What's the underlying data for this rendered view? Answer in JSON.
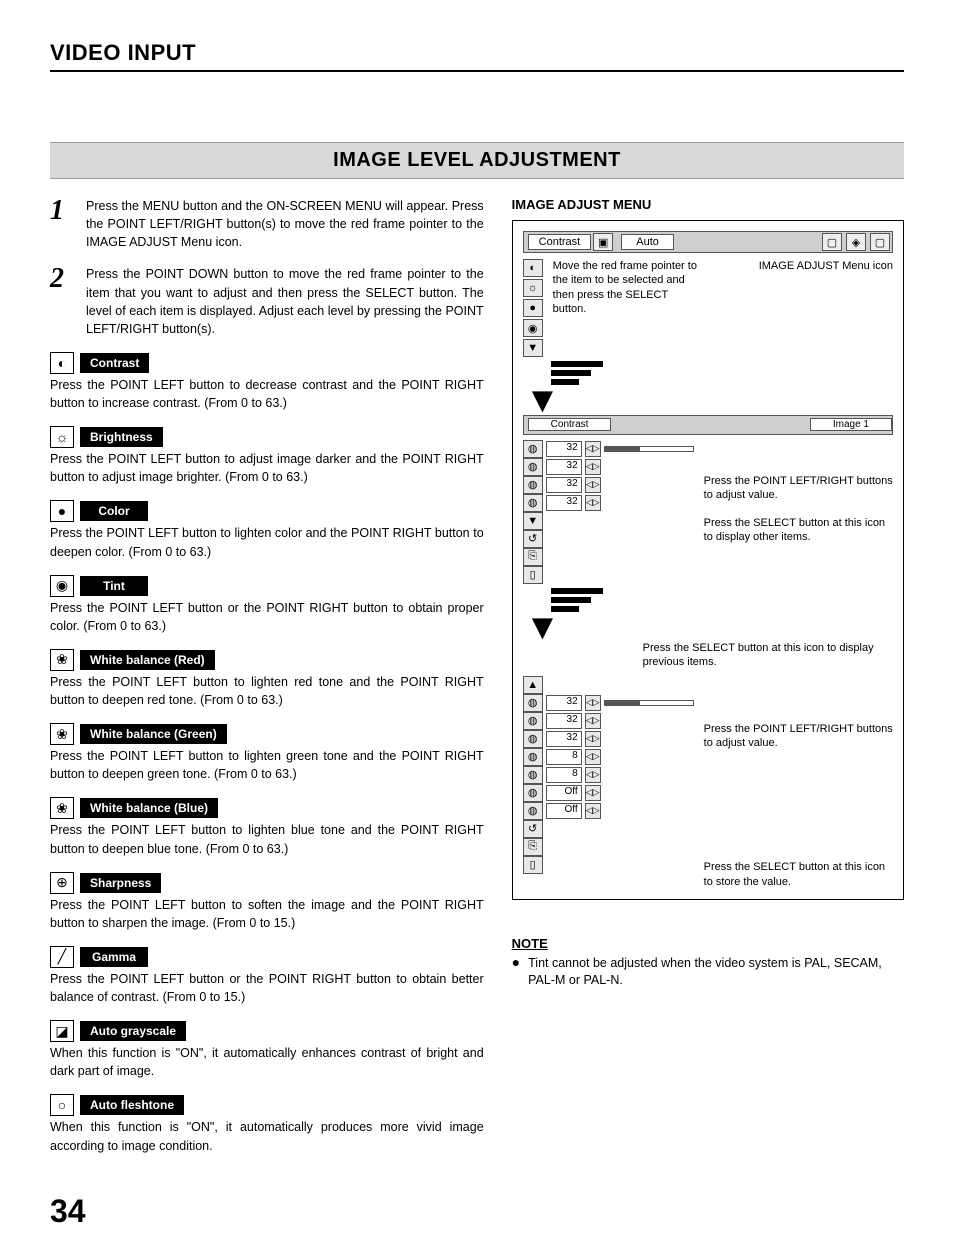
{
  "page_title": "VIDEO INPUT",
  "section_title": "IMAGE LEVEL ADJUSTMENT",
  "page_number": "34",
  "steps": [
    {
      "num": "1",
      "text": "Press the MENU button and the ON-SCREEN MENU will appear.  Press the POINT LEFT/RIGHT button(s) to move the red frame pointer to the IMAGE ADJUST Menu icon."
    },
    {
      "num": "2",
      "text": "Press the POINT DOWN button to move the red frame pointer to the item that you want to adjust and then press the SELECT button.  The level of each item is displayed.  Adjust each level by pressing the POINT LEFT/RIGHT button(s)."
    }
  ],
  "params": [
    {
      "icon": "◐",
      "label": "Contrast",
      "desc": "Press the POINT LEFT button to decrease contrast and the POINT RIGHT button to increase contrast.  (From 0 to 63.)"
    },
    {
      "icon": "☼",
      "label": "Brightness",
      "desc": "Press the POINT LEFT button to adjust image darker and the POINT RIGHT button to adjust image brighter.  (From 0 to 63.)"
    },
    {
      "icon": "●",
      "label": "Color",
      "desc": "Press the POINT LEFT button to lighten color and the POINT RIGHT button to deepen color.  (From 0 to 63.)"
    },
    {
      "icon": "◉",
      "label": "Tint",
      "desc": "Press the POINT LEFT button or the POINT RIGHT button to obtain proper color.  (From 0 to 63.)"
    },
    {
      "icon": "❀",
      "label": "White balance (Red)",
      "desc": "Press the POINT LEFT button to lighten red tone and the POINT RIGHT button to deepen red tone.  (From 0 to 63.)"
    },
    {
      "icon": "❀",
      "label": "White balance (Green)",
      "desc": "Press the POINT LEFT button to lighten green tone and the POINT RIGHT button to deepen green tone.  (From 0 to 63.)"
    },
    {
      "icon": "❀",
      "label": "White balance (Blue)",
      "desc": "Press the POINT LEFT button to lighten blue tone and the POINT RIGHT button to deepen blue tone.  (From 0 to 63.)"
    },
    {
      "icon": "⊕",
      "label": "Sharpness",
      "desc": "Press the POINT LEFT button to soften the image and the POINT RIGHT button to sharpen the image.  (From 0 to 15.)"
    },
    {
      "icon": "╱",
      "label": "Gamma",
      "desc": "Press the POINT LEFT button or the POINT RIGHT button to obtain better balance of contrast.  (From 0 to 15.)"
    },
    {
      "icon": "◪",
      "label": "Auto grayscale",
      "desc": "When this function is \"ON\", it automatically enhances contrast of bright and dark part of image."
    },
    {
      "icon": "○",
      "label": "Auto fleshtone",
      "desc": "When this function is \"ON\", it automatically produces more vivid image according to image condition."
    }
  ],
  "right": {
    "heading": "IMAGE ADJUST MENU",
    "menu_label": "Contrast",
    "mode_label": "Auto",
    "hint1": "Move the red frame pointer to the item to be selected and then press the SELECT button.",
    "hint1_right": "IMAGE ADJUST Menu icon",
    "sub_label": "Contrast",
    "sub_mode": "Image 1",
    "rows1": [
      {
        "val": "32"
      },
      {
        "val": "32"
      },
      {
        "val": "32"
      },
      {
        "val": "32"
      }
    ],
    "callout1a": "Press the POINT LEFT/RIGHT buttons to adjust value.",
    "callout1b": "Press the SELECT button at this icon to display other items.",
    "callout2a": "Press the SELECT button at this icon to display previous items.",
    "rows2": [
      {
        "val": "32"
      },
      {
        "val": "32"
      },
      {
        "val": "32"
      },
      {
        "val": "8"
      },
      {
        "val": "8"
      },
      {
        "val": "Off"
      },
      {
        "val": "Off"
      }
    ],
    "callout2b": "Press the POINT LEFT/RIGHT buttons to adjust value.",
    "callout2c": "Press the SELECT button at this icon to store the value."
  },
  "note": {
    "heading": "NOTE",
    "text": "Tint cannot be adjusted when the video system is PAL, SECAM, PAL-M or PAL-N."
  }
}
